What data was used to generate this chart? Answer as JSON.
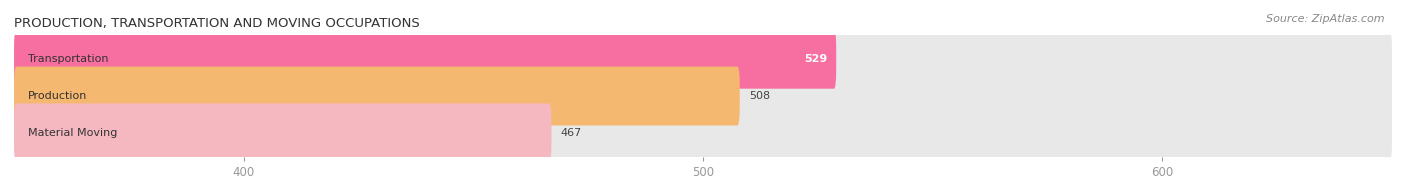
{
  "title": "PRODUCTION, TRANSPORTATION AND MOVING OCCUPATIONS",
  "source": "Source: ZipAtlas.com",
  "categories": [
    "Transportation",
    "Production",
    "Material Moving"
  ],
  "values": [
    529,
    508,
    467
  ],
  "bar_colors": [
    "#f76fa0",
    "#f5b870",
    "#f5b8c0"
  ],
  "value_color_inside": [
    "white",
    "#555555",
    "#555555"
  ],
  "bar_bg_color": "#e8e8e8",
  "xlim_min": 350,
  "xlim_max": 650,
  "xticks": [
    400,
    500,
    600
  ],
  "figsize": [
    14.06,
    1.96
  ],
  "dpi": 100,
  "bar_height": 0.62,
  "title_fontsize": 9.5,
  "label_fontsize": 8.0,
  "tick_fontsize": 8.5,
  "source_fontsize": 8
}
